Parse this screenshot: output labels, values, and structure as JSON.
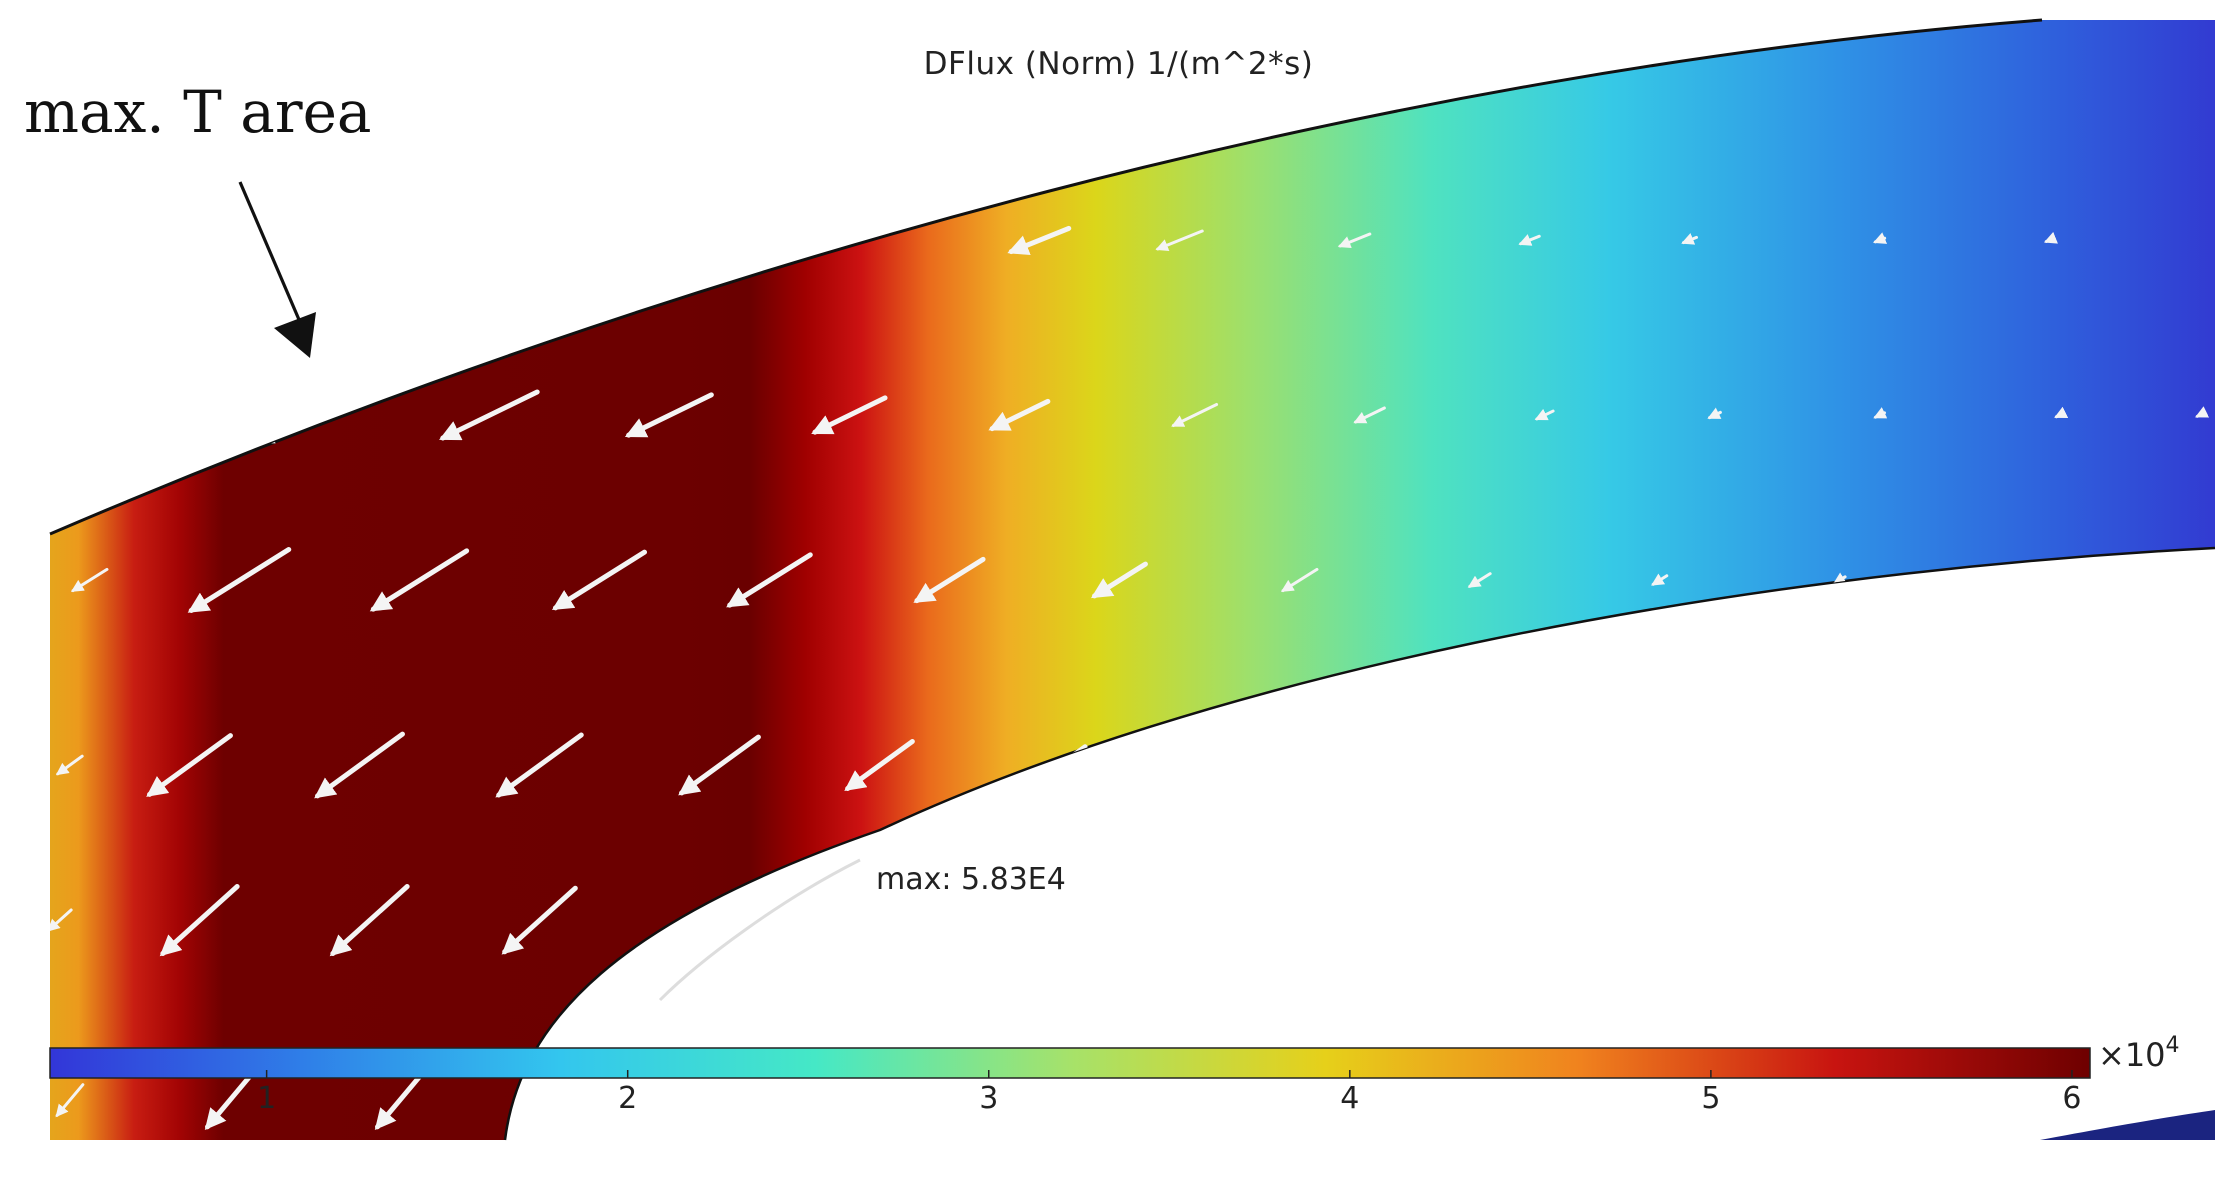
{
  "plot": {
    "title": "DFlux (Norm) 1/(m^2*s)",
    "annotation": "max. T area",
    "max_label": "max: 5.83E4"
  },
  "colorbar": {
    "ticks": [
      "1",
      "2",
      "3",
      "4",
      "5",
      "6"
    ],
    "tick_values": [
      1,
      2,
      3,
      4,
      5,
      6
    ],
    "range": [
      0.4,
      6.05
    ],
    "multiplier": "×10",
    "exponent": "4",
    "colormap": [
      "#3236d8",
      "#2f7fe8",
      "#33c6ee",
      "#45e8c6",
      "#a6e26a",
      "#e6d01a",
      "#f0821e",
      "#c81410",
      "#6e0000"
    ]
  },
  "field": {
    "dominant_color": "#6e0000",
    "arrow_color": "#f4f4f4"
  }
}
